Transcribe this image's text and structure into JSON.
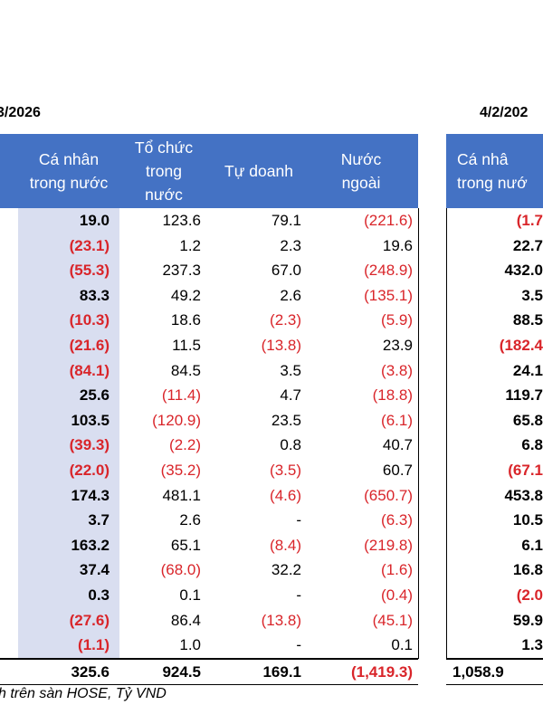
{
  "left_table": {
    "date": "3/2026",
    "columns": [
      "Cá nhân\ntrong nước",
      "Tổ chức\ntrong\nnước",
      "Tự doanh",
      "Nước\nngoài"
    ],
    "rows": [
      [
        "19.0",
        "123.6",
        "79.1",
        "(221.6)"
      ],
      [
        "(23.1)",
        "1.2",
        "2.3",
        "19.6"
      ],
      [
        "(55.3)",
        "237.3",
        "67.0",
        "(248.9)"
      ],
      [
        "83.3",
        "49.2",
        "2.6",
        "(135.1)"
      ],
      [
        "(10.3)",
        "18.6",
        "(2.3)",
        "(5.9)"
      ],
      [
        "(21.6)",
        "11.5",
        "(13.8)",
        "23.9"
      ],
      [
        "(84.1)",
        "84.5",
        "3.5",
        "(3.8)"
      ],
      [
        "25.6",
        "(11.4)",
        "4.7",
        "(18.8)"
      ],
      [
        "103.5",
        "(120.9)",
        "23.5",
        "(6.1)"
      ],
      [
        "(39.3)",
        "(2.2)",
        "0.8",
        "40.7"
      ],
      [
        "(22.0)",
        "(35.2)",
        "(3.5)",
        "60.7"
      ],
      [
        "174.3",
        "481.1",
        "(4.6)",
        "(650.7)"
      ],
      [
        "3.7",
        "2.6",
        "-",
        "(6.3)"
      ],
      [
        "163.2",
        "65.1",
        "(8.4)",
        "(219.8)"
      ],
      [
        "37.4",
        "(68.0)",
        "32.2",
        "(1.6)"
      ],
      [
        "0.3",
        "0.1",
        "-",
        "(0.4)"
      ],
      [
        "(27.6)",
        "86.4",
        "(13.8)",
        "(45.1)"
      ],
      [
        "(1.1)",
        "1.0",
        "-",
        "0.1"
      ]
    ],
    "total": [
      "325.6",
      "924.5",
      "169.1",
      "(1,419.3)"
    ]
  },
  "right_table": {
    "date": "4/2/202",
    "column": "Cá nhâ\ntrong nướ",
    "rows": [
      "(1.7",
      "22.7",
      "432.0",
      "3.5",
      "88.5",
      "(182.4",
      "24.1",
      "119.7",
      "65.8",
      "6.8",
      "(67.1",
      "453.8",
      "10.5",
      "6.1",
      "16.8",
      "(2.0",
      "59.9",
      "1.3"
    ],
    "total": "1,058.9"
  },
  "source": "h trên sàn HOSE, Tỷ VND",
  "colors": {
    "header_bg": "#4472c4",
    "negative": "#d9252a",
    "shade": "#d9def0"
  }
}
